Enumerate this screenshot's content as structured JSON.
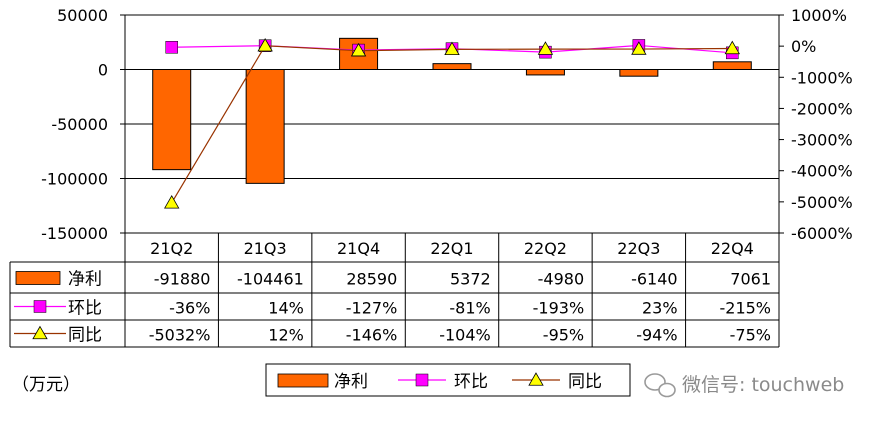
{
  "chart_data": {
    "type": "bar",
    "categories": [
      "21Q2",
      "21Q3",
      "21Q4",
      "22Q1",
      "22Q2",
      "22Q3",
      "22Q4"
    ],
    "unit_label": "（万元）",
    "watermark": "微信号: touchweb",
    "y_left": {
      "ticks": [
        "50000",
        "0",
        "-50000",
        "-100000",
        "-150000"
      ],
      "ylim": [
        -150000,
        50000
      ]
    },
    "y_right": {
      "ticks": [
        "1000%",
        "0%",
        "-1000%",
        "-2000%",
        "-3000%",
        "-4000%",
        "-5000%",
        "-6000%"
      ],
      "ylim": [
        -6000,
        1000
      ]
    },
    "series": [
      {
        "name": "净利",
        "kind": "bar",
        "axis": "left",
        "color": "#FF6600",
        "values": [
          -91880,
          -104461,
          28590,
          5372,
          -4980,
          -6140,
          7061
        ],
        "labels": [
          "-91880",
          "-104461",
          "28590",
          "5372",
          "-4980",
          "-6140",
          "7061"
        ]
      },
      {
        "name": "环比",
        "kind": "line",
        "axis": "right",
        "color": "#FF00FF",
        "marker": "square",
        "values": [
          -36,
          14,
          -127,
          -81,
          -193,
          23,
          -215
        ],
        "labels": [
          "-36%",
          "14%",
          "-127%",
          "-81%",
          "-193%",
          "23%",
          "-215%"
        ]
      },
      {
        "name": "同比",
        "kind": "line",
        "axis": "right",
        "color": "#993300",
        "marker": "triangle",
        "marker_color": "#FFFF00",
        "values": [
          -5032,
          12,
          -146,
          -104,
          -95,
          -94,
          -75
        ],
        "labels": [
          "-5032%",
          "12%",
          "-146%",
          "-104%",
          "-95%",
          "-94%",
          "-75%"
        ]
      }
    ],
    "legend": [
      "净利",
      "环比",
      "同比"
    ],
    "legend_position": "bottom",
    "grid": true
  }
}
